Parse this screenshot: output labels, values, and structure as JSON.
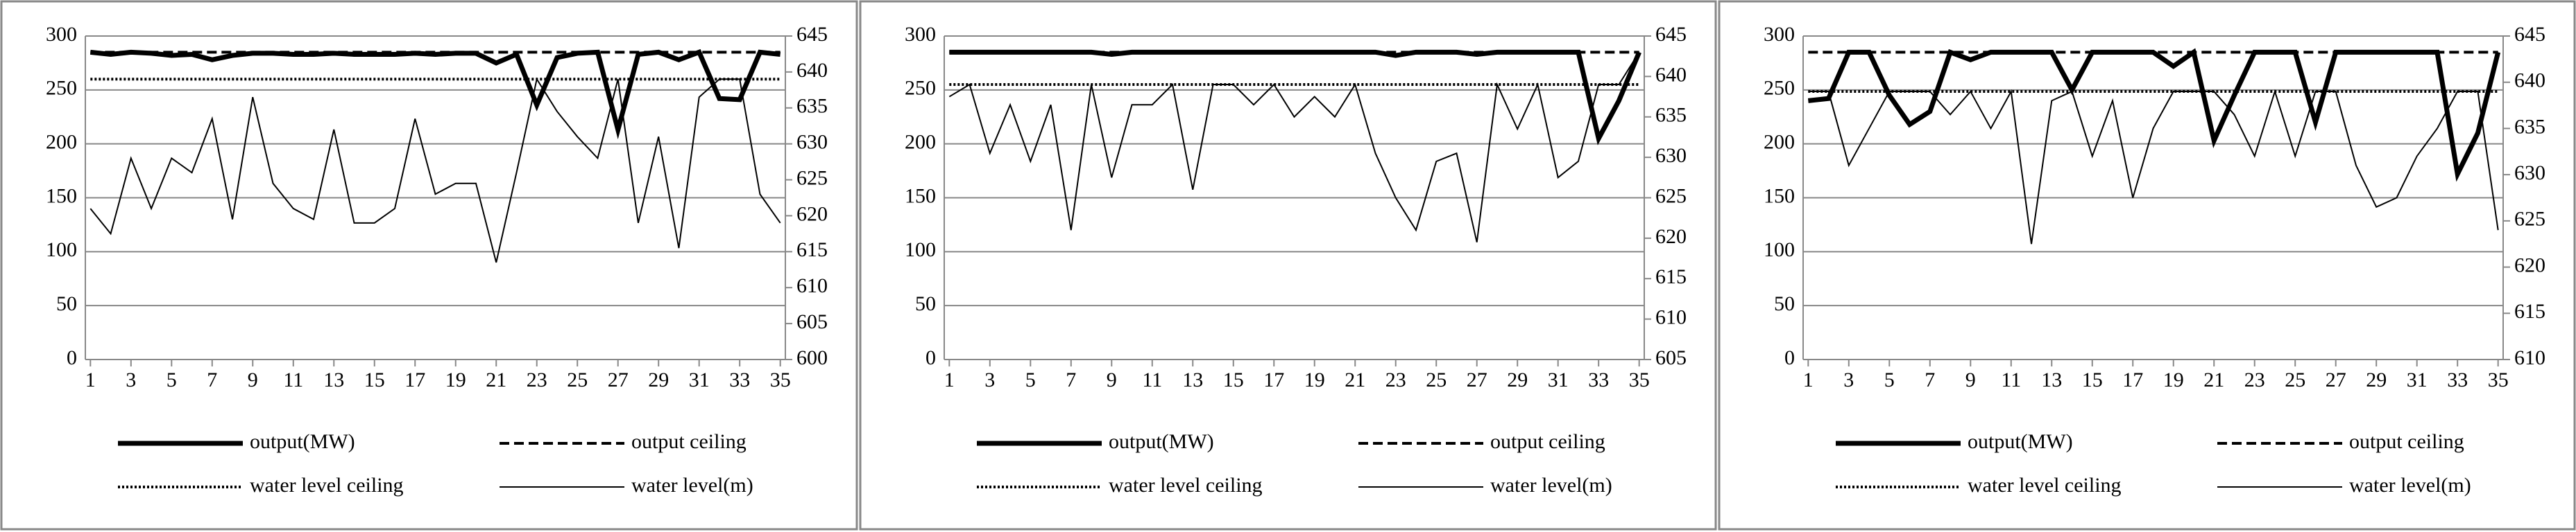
{
  "chart_data": [
    {
      "type": "line",
      "x": [
        1,
        2,
        3,
        4,
        5,
        6,
        7,
        8,
        9,
        10,
        11,
        12,
        13,
        14,
        15,
        16,
        17,
        18,
        19,
        20,
        21,
        22,
        23,
        24,
        25,
        26,
        27,
        28,
        29,
        30,
        31,
        32,
        33,
        34,
        35
      ],
      "xlim": [
        0.75,
        35.25
      ],
      "xticks": [
        1,
        3,
        5,
        7,
        9,
        11,
        13,
        15,
        17,
        19,
        21,
        23,
        25,
        27,
        29,
        31,
        33,
        35
      ],
      "ylim": [
        0,
        300
      ],
      "yticks": [
        0,
        50,
        100,
        150,
        200,
        250,
        300
      ],
      "y2lim": [
        600,
        645
      ],
      "y2ticks": [
        600,
        605,
        610,
        615,
        620,
        625,
        630,
        635,
        640,
        645
      ],
      "grid": true,
      "series": [
        {
          "name": "output(MW)",
          "color": "#000000",
          "style": "thick",
          "values": [
            285,
            283,
            285,
            284,
            282,
            283,
            278,
            282,
            284,
            284,
            283,
            283,
            284,
            283,
            283,
            283,
            284,
            283,
            284,
            284,
            275,
            283,
            236,
            280,
            284,
            285,
            213,
            283,
            285,
            278,
            285,
            242,
            241,
            285,
            283
          ]
        },
        {
          "name": "output ceiling",
          "color": "#000000",
          "style": "dashed",
          "values": [
            285,
            285,
            285,
            285,
            285,
            285,
            285,
            285,
            285,
            285,
            285,
            285,
            285,
            285,
            285,
            285,
            285,
            285,
            285,
            285,
            285,
            285,
            285,
            285,
            285,
            285,
            285,
            285,
            285,
            285,
            285,
            285,
            285,
            285,
            285
          ]
        },
        {
          "name": "water level ceiling",
          "color": "#000000",
          "style": "dotted",
          "axis": "y2",
          "values": [
            639,
            639,
            639,
            639,
            639,
            639,
            639,
            639,
            639,
            639,
            639,
            639,
            639,
            639,
            639,
            639,
            639,
            639,
            639,
            639,
            639,
            639,
            639,
            639,
            639,
            639,
            639,
            639,
            639,
            639,
            639,
            639,
            639,
            639,
            639
          ]
        },
        {
          "name": "water level(m)",
          "color": "#000000",
          "style": "thin",
          "axis": "y2",
          "values": [
            621,
            617.5,
            628,
            621,
            628,
            626,
            633.5,
            619.5,
            636.5,
            624.5,
            621,
            619.5,
            632,
            619,
            619,
            621,
            633.5,
            623,
            624.5,
            624.5,
            613.5,
            626,
            639,
            634.5,
            631,
            628,
            639,
            619,
            631,
            615.5,
            636.5,
            639,
            639,
            623,
            619
          ]
        }
      ]
    },
    {
      "type": "line",
      "x": [
        1,
        2,
        3,
        4,
        5,
        6,
        7,
        8,
        9,
        10,
        11,
        12,
        13,
        14,
        15,
        16,
        17,
        18,
        19,
        20,
        21,
        22,
        23,
        24,
        25,
        26,
        27,
        28,
        29,
        30,
        31,
        32,
        33,
        34,
        35
      ],
      "xlim": [
        0.75,
        35.25
      ],
      "xticks": [
        1,
        3,
        5,
        7,
        9,
        11,
        13,
        15,
        17,
        19,
        21,
        23,
        25,
        27,
        29,
        31,
        33,
        35
      ],
      "ylim": [
        0,
        300
      ],
      "yticks": [
        0,
        50,
        100,
        150,
        200,
        250,
        300
      ],
      "y2lim": [
        605,
        645
      ],
      "y2ticks": [
        605,
        610,
        615,
        620,
        625,
        630,
        635,
        640,
        645
      ],
      "grid": true,
      "series": [
        {
          "name": "output(MW)",
          "color": "#000000",
          "style": "thick",
          "values": [
            285,
            285,
            285,
            285,
            285,
            285,
            285,
            285,
            283,
            285,
            285,
            285,
            285,
            285,
            285,
            285,
            285,
            285,
            285,
            285,
            285,
            285,
            282,
            285,
            285,
            285,
            283,
            285,
            285,
            285,
            285,
            285,
            205,
            240,
            285
          ]
        },
        {
          "name": "output ceiling",
          "color": "#000000",
          "style": "dashed",
          "values": [
            285,
            285,
            285,
            285,
            285,
            285,
            285,
            285,
            285,
            285,
            285,
            285,
            285,
            285,
            285,
            285,
            285,
            285,
            285,
            285,
            285,
            285,
            285,
            285,
            285,
            285,
            285,
            285,
            285,
            285,
            285,
            285,
            285,
            285,
            285
          ]
        },
        {
          "name": "water level ceiling",
          "color": "#000000",
          "style": "dotted",
          "axis": "y2",
          "values": [
            639,
            639,
            639,
            639,
            639,
            639,
            639,
            639,
            639,
            639,
            639,
            639,
            639,
            639,
            639,
            639,
            639,
            639,
            639,
            639,
            639,
            639,
            639,
            639,
            639,
            639,
            639,
            639,
            639,
            639,
            639,
            639,
            639,
            639,
            639
          ]
        },
        {
          "name": "water level(m)",
          "color": "#000000",
          "style": "thin",
          "axis": "y2",
          "values": [
            637.5,
            639,
            630.5,
            636.5,
            629.5,
            636.5,
            621,
            639,
            627.5,
            636.5,
            636.5,
            639,
            626,
            639,
            639,
            636.5,
            639,
            635,
            637.5,
            635,
            639,
            630.5,
            625,
            621,
            629.5,
            630.5,
            619.5,
            639,
            633.5,
            639,
            627.5,
            629.5,
            639,
            639,
            643
          ]
        }
      ]
    },
    {
      "type": "line",
      "x": [
        1,
        2,
        3,
        4,
        5,
        6,
        7,
        8,
        9,
        10,
        11,
        12,
        13,
        14,
        15,
        16,
        17,
        18,
        19,
        20,
        21,
        22,
        23,
        24,
        25,
        26,
        27,
        28,
        29,
        30,
        31,
        32,
        33,
        34,
        35
      ],
      "xlim": [
        0.75,
        35.25
      ],
      "xticks": [
        1,
        3,
        5,
        7,
        9,
        11,
        13,
        15,
        17,
        19,
        21,
        23,
        25,
        27,
        29,
        31,
        33,
        35
      ],
      "ylim": [
        0,
        300
      ],
      "yticks": [
        0,
        50,
        100,
        150,
        200,
        250,
        300
      ],
      "y2lim": [
        610,
        645
      ],
      "y2ticks": [
        610,
        615,
        620,
        625,
        630,
        635,
        640,
        645
      ],
      "grid": true,
      "series": [
        {
          "name": "output(MW)",
          "color": "#000000",
          "style": "thick",
          "values": [
            240,
            242,
            285,
            285,
            245,
            218,
            230,
            285,
            278,
            285,
            285,
            285,
            285,
            250,
            285,
            285,
            285,
            285,
            272,
            285,
            203,
            245,
            285,
            285,
            285,
            220,
            285,
            285,
            285,
            285,
            285,
            285,
            172,
            210,
            285
          ]
        },
        {
          "name": "output ceiling",
          "color": "#000000",
          "style": "dashed",
          "values": [
            285,
            285,
            285,
            285,
            285,
            285,
            285,
            285,
            285,
            285,
            285,
            285,
            285,
            285,
            285,
            285,
            285,
            285,
            285,
            285,
            285,
            285,
            285,
            285,
            285,
            285,
            285,
            285,
            285,
            285,
            285,
            285,
            285,
            285,
            285
          ]
        },
        {
          "name": "water level ceiling",
          "color": "#000000",
          "style": "dotted",
          "axis": "y2",
          "values": [
            639,
            639,
            639,
            639,
            639,
            639,
            639,
            639,
            639,
            639,
            639,
            639,
            639,
            639,
            639,
            639,
            639,
            639,
            639,
            639,
            639,
            639,
            639,
            639,
            639,
            639,
            639,
            639,
            639,
            639,
            639,
            639,
            639,
            639,
            639
          ]
        },
        {
          "name": "water level(m)",
          "color": "#000000",
          "style": "thin",
          "axis": "y2",
          "values": [
            639,
            639,
            631,
            635,
            639,
            639,
            639,
            636.5,
            639,
            635,
            639,
            622.5,
            638,
            639,
            632,
            638,
            627.5,
            635,
            639,
            639,
            639,
            636.5,
            632,
            639,
            632,
            639,
            639,
            631,
            626.5,
            627.5,
            632,
            635,
            639,
            639,
            624
          ]
        }
      ]
    }
  ]
}
